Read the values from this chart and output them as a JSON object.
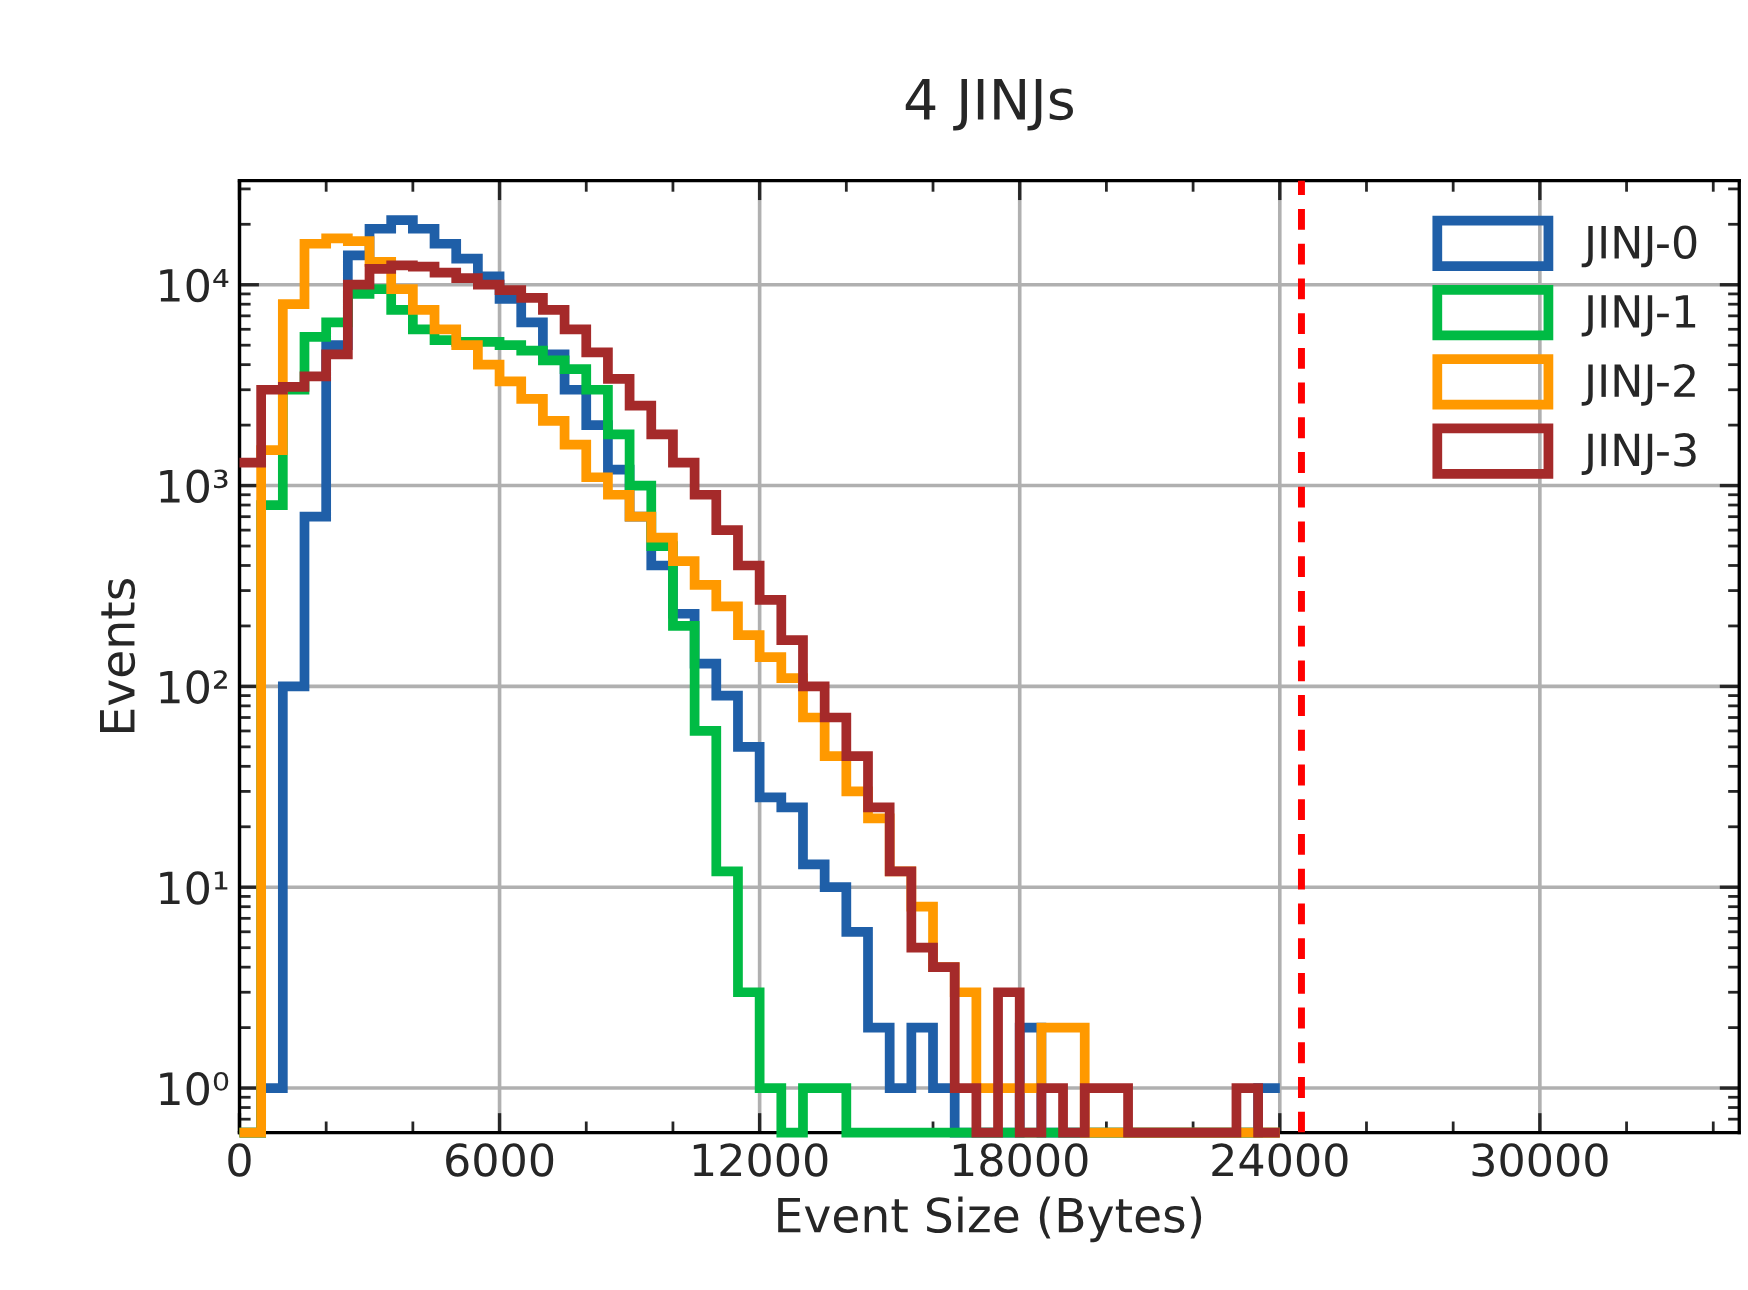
{
  "chart_data": {
    "type": "histogram",
    "title": "4 JINJs",
    "xlabel": "Event Size (Bytes)",
    "ylabel": "Events",
    "bins": [
      0,
      500,
      1000,
      1500,
      2000,
      2500,
      3000,
      3500,
      4000,
      4500,
      5000,
      5500,
      6000,
      6500,
      7000,
      7500,
      8000,
      8500,
      9000,
      9500,
      10000,
      10500,
      11000,
      11500,
      12000,
      12500,
      13000,
      13500,
      14000,
      14500,
      15000,
      15500,
      16000,
      16500,
      17000,
      17500,
      18000,
      18500,
      19000,
      19500,
      20000,
      20500,
      21000,
      21500,
      22000,
      22500,
      23000,
      23500,
      24000
    ],
    "series": [
      {
        "name": "JINJ-0",
        "color": "#1f5fa8",
        "values": [
          null,
          1,
          100,
          700,
          5000,
          14000,
          19000,
          21000,
          19000,
          16000,
          13500,
          11000,
          8500,
          6500,
          4500,
          3000,
          2000,
          1200,
          700,
          400,
          230,
          130,
          90,
          50,
          28,
          25,
          13,
          10,
          6,
          2,
          1,
          2,
          1,
          null,
          null,
          null,
          2,
          null,
          null,
          null,
          null,
          null,
          null,
          null,
          null,
          null,
          null,
          1
        ]
      },
      {
        "name": "JINJ-1",
        "color": "#00bb44",
        "values": [
          null,
          800,
          3000,
          5500,
          6500,
          9000,
          9500,
          7500,
          6000,
          5300,
          5200,
          5200,
          5000,
          4700,
          4200,
          3800,
          3000,
          1800,
          1000,
          500,
          200,
          60,
          12,
          3,
          1,
          null,
          1,
          1,
          null,
          null,
          null,
          null,
          null,
          null,
          null,
          null,
          null,
          null,
          null,
          null,
          null,
          null,
          null,
          null,
          null,
          null,
          null,
          null
        ]
      },
      {
        "name": "JINJ-2",
        "color": "#ff9900",
        "values": [
          null,
          1500,
          8000,
          16000,
          17000,
          16500,
          13000,
          9500,
          7500,
          6000,
          5000,
          4000,
          3300,
          2700,
          2100,
          1600,
          1100,
          900,
          700,
          550,
          420,
          320,
          250,
          180,
          140,
          110,
          70,
          45,
          30,
          22,
          12,
          8,
          4,
          3,
          1,
          1,
          1,
          2,
          2,
          null,
          null,
          null,
          null,
          null,
          null,
          null,
          null,
          null
        ]
      },
      {
        "name": "JINJ-3",
        "color": "#a52a2a",
        "values": [
          1300,
          3000,
          3100,
          3500,
          4500,
          10000,
          12000,
          12500,
          12300,
          11500,
          10800,
          10000,
          9400,
          8600,
          7500,
          6000,
          4600,
          3400,
          2500,
          1800,
          1300,
          900,
          600,
          400,
          270,
          170,
          100,
          70,
          45,
          25,
          12,
          5,
          4,
          1,
          null,
          3,
          null,
          1,
          null,
          1,
          1,
          null,
          null,
          null,
          null,
          null,
          1,
          null
        ]
      }
    ],
    "xlim": [
      0,
      34600
    ],
    "xticks": [
      0,
      6000,
      12000,
      18000,
      24000,
      30000
    ],
    "log": true,
    "ylim": [
      0.6,
      33000
    ],
    "yticks": [
      {
        "value": 1,
        "label": "10⁰"
      },
      {
        "value": 10,
        "label": "10¹"
      },
      {
        "value": 100,
        "label": "10²"
      },
      {
        "value": 1000,
        "label": "10³"
      },
      {
        "value": 10000,
        "label": "10⁴"
      }
    ],
    "ref_lines": [
      {
        "axis": "x",
        "value": 24500,
        "color": "#ff0000",
        "line_style": "dashed"
      }
    ],
    "grid": true,
    "legend": "top right"
  }
}
